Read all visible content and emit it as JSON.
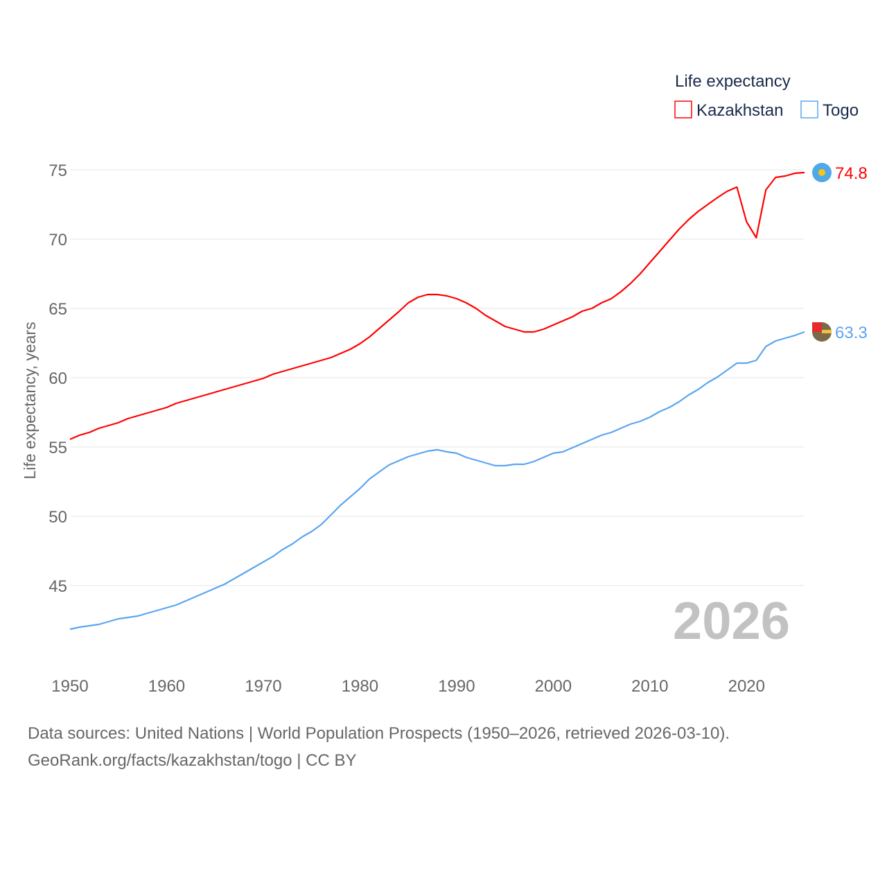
{
  "chart_data": {
    "type": "line",
    "ylabel": "Life expectancy, years",
    "xlabel": "",
    "legend_title": "Life expectancy",
    "legend_position": "top-right",
    "year_label": "2026",
    "xlim": [
      1950,
      2026
    ],
    "ylim": [
      40,
      75
    ],
    "x_ticks": [
      1950,
      1960,
      1970,
      1980,
      1990,
      2000,
      2010,
      2020
    ],
    "y_ticks": [
      45,
      50,
      55,
      60,
      65,
      70,
      75
    ],
    "grid": true,
    "x": [
      1950,
      1951,
      1952,
      1953,
      1954,
      1955,
      1956,
      1957,
      1958,
      1959,
      1960,
      1961,
      1962,
      1963,
      1964,
      1965,
      1966,
      1967,
      1968,
      1969,
      1970,
      1971,
      1972,
      1973,
      1974,
      1975,
      1976,
      1977,
      1978,
      1979,
      1980,
      1981,
      1982,
      1983,
      1984,
      1985,
      1986,
      1987,
      1988,
      1989,
      1990,
      1991,
      1992,
      1993,
      1994,
      1995,
      1996,
      1997,
      1998,
      1999,
      2000,
      2001,
      2002,
      2003,
      2004,
      2005,
      2006,
      2007,
      2008,
      2009,
      2010,
      2011,
      2012,
      2013,
      2014,
      2015,
      2016,
      2017,
      2018,
      2019,
      2020,
      2021,
      2022,
      2023,
      2024,
      2025,
      2026
    ],
    "series": [
      {
        "name": "Kazakhstan",
        "color": "#ff0000",
        "end_label": "74.8",
        "values": [
          55.55,
          55.85,
          56.05,
          56.35,
          56.55,
          56.75,
          57.05,
          57.25,
          57.45,
          57.65,
          57.85,
          58.15,
          58.35,
          58.55,
          58.75,
          58.95,
          59.15,
          59.35,
          59.55,
          59.75,
          59.95,
          60.25,
          60.45,
          60.65,
          60.85,
          61.05,
          61.25,
          61.45,
          61.75,
          62.05,
          62.45,
          62.95,
          63.55,
          64.15,
          64.75,
          65.4,
          65.8,
          66.0,
          66.0,
          65.9,
          65.7,
          65.4,
          65.0,
          64.5,
          64.1,
          63.7,
          63.5,
          63.3,
          63.3,
          63.5,
          63.8,
          64.1,
          64.4,
          64.8,
          65.0,
          65.4,
          65.7,
          66.2,
          66.8,
          67.5,
          68.3,
          69.1,
          69.9,
          70.7,
          71.4,
          72.0,
          72.5,
          73.0,
          73.45,
          73.75,
          71.25,
          70.1,
          73.55,
          74.45,
          74.55,
          74.75,
          74.8
        ]
      },
      {
        "name": "Togo",
        "color": "#5aa5f0",
        "end_label": "63.3",
        "values": [
          41.85,
          42.0,
          42.1,
          42.2,
          42.4,
          42.6,
          42.7,
          42.8,
          43.0,
          43.2,
          43.4,
          43.6,
          43.9,
          44.2,
          44.5,
          44.8,
          45.1,
          45.5,
          45.9,
          46.3,
          46.7,
          47.1,
          47.6,
          48.0,
          48.5,
          48.9,
          49.4,
          50.1,
          50.8,
          51.4,
          52.0,
          52.7,
          53.2,
          53.7,
          54.0,
          54.3,
          54.5,
          54.7,
          54.8,
          54.65,
          54.55,
          54.25,
          54.05,
          53.85,
          53.65,
          53.65,
          53.75,
          53.75,
          53.95,
          54.25,
          54.55,
          54.65,
          54.95,
          55.25,
          55.55,
          55.85,
          56.05,
          56.35,
          56.65,
          56.85,
          57.15,
          57.55,
          57.85,
          58.25,
          58.75,
          59.15,
          59.65,
          60.05,
          60.55,
          61.05,
          61.05,
          61.25,
          62.25,
          62.65,
          62.85,
          63.05,
          63.3
        ]
      }
    ]
  },
  "footer": {
    "line1": "Data sources: United Nations | World Population Prospects (1950–2026, retrieved 2026-03-10).",
    "line2": "GeoRank.org/facts/kazakhstan/togo | CC BY"
  }
}
